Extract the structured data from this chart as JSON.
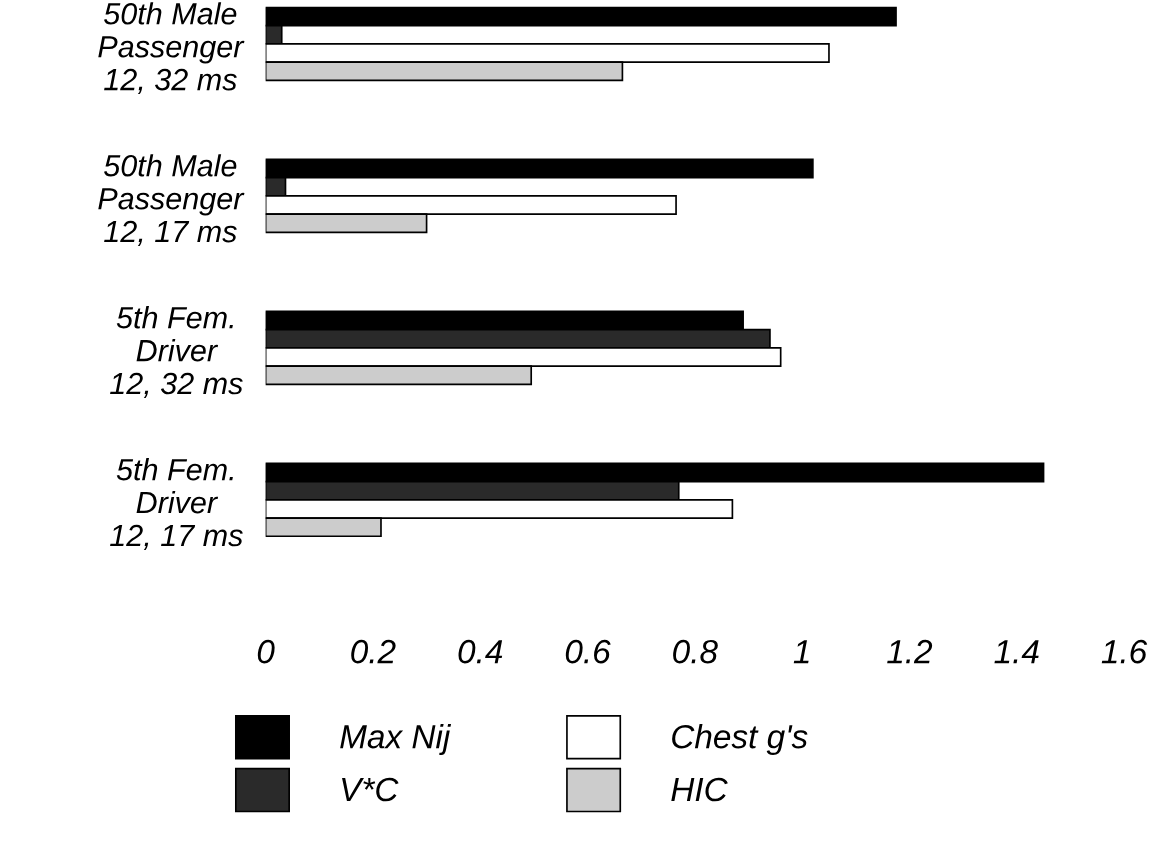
{
  "chart_data": {
    "type": "bar",
    "orientation": "horizontal",
    "categories": [
      "50th Male\nPassenger\n12, 32 ms",
      "50th Male\nPassenger\n12, 17 ms",
      "5th Fem.\nDriver\n12, 32 ms",
      "5th Fem.\nDriver\n12, 17 ms"
    ],
    "series": [
      {
        "name": "Max Nij",
        "color": "#000000",
        "values": [
          1.175,
          1.02,
          0.89,
          1.45
        ]
      },
      {
        "name": "V*C",
        "color": "#2a2a2a",
        "values": [
          0.03,
          0.037,
          0.94,
          0.77
        ]
      },
      {
        "name": "Chest g's",
        "color": "#ffffff",
        "values": [
          1.05,
          0.765,
          0.96,
          0.87
        ]
      },
      {
        "name": "HIC",
        "color": "#cccccc",
        "values": [
          0.665,
          0.3,
          0.495,
          0.215
        ]
      }
    ],
    "xlim": [
      0,
      1.6
    ],
    "xticks": [
      0,
      0.2,
      0.4,
      0.6,
      0.8,
      1,
      1.2,
      1.4,
      1.6
    ],
    "grid": false,
    "legend": "bottom"
  }
}
